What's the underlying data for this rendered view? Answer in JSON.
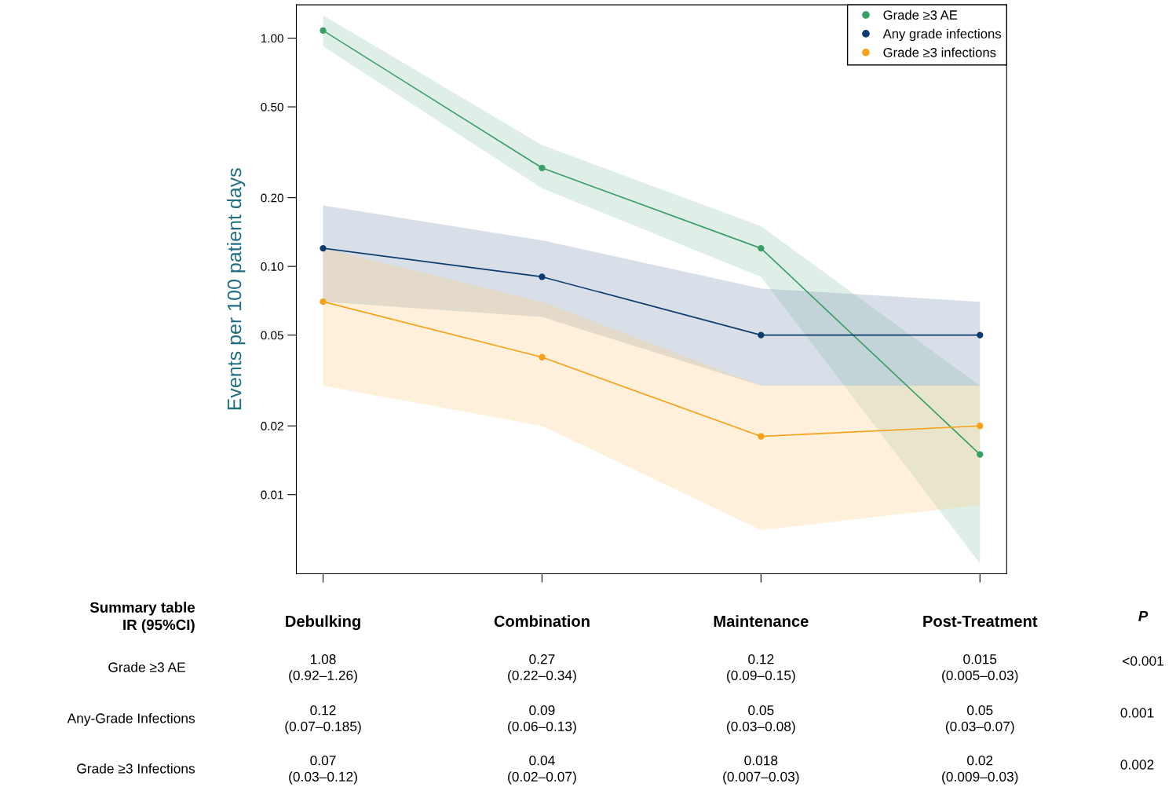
{
  "chart_data": {
    "type": "line",
    "ylabel": "Events per 100 patient days",
    "categories": [
      "Debulking",
      "Combination",
      "Maintenance",
      "Post-Treatment"
    ],
    "log": true,
    "ylim": [
      0.0045,
      1.4
    ],
    "yticks": [
      {
        "value": 0.01,
        "label": "0.01"
      },
      {
        "value": 0.02,
        "label": "0.02"
      },
      {
        "value": 0.05,
        "label": "0.05"
      },
      {
        "value": 0.1,
        "label": "0.10"
      },
      {
        "value": 0.2,
        "label": "0.20"
      },
      {
        "value": 0.5,
        "label": "0.50"
      },
      {
        "value": 1,
        "label": "1.00"
      }
    ],
    "marker": "circle",
    "line_style": "solid",
    "legend": "top right",
    "series": [
      {
        "name": "Grade ≥3 AE",
        "color": "#3a9e68",
        "values": [
          1.08,
          0.27,
          0.12,
          0.015
        ],
        "lower": [
          0.92,
          0.22,
          0.09,
          0.005
        ],
        "upper": [
          1.26,
          0.34,
          0.15,
          0.03
        ],
        "value_labels": [
          "1.08\n(0.92–1.26)",
          "0.27\n(0.22–0.34)",
          "0.12\n(0.09–0.15)",
          "0.015\n(0.005–0.03)"
        ]
      },
      {
        "name": "Any grade infections",
        "color": "#0c3b6f",
        "values": [
          0.12,
          0.09,
          0.05,
          0.05
        ],
        "lower": [
          0.07,
          0.06,
          0.03,
          0.03
        ],
        "upper": [
          0.185,
          0.13,
          0.08,
          0.07
        ],
        "value_labels": [
          "0.12\n(0.07–0.185)",
          "0.09\n(0.06–0.13)",
          "0.05\n(0.03–0.08)",
          "0.05\n(0.03–0.07)"
        ]
      },
      {
        "name": "Grade ≥3 infections",
        "color": "#f7a11a",
        "values": [
          0.07,
          0.04,
          0.018,
          0.02
        ],
        "lower": [
          0.03,
          0.02,
          0.007,
          0.009
        ],
        "upper": [
          0.12,
          0.07,
          0.03,
          0.03
        ],
        "value_labels": [
          "0.07\n(0.03–0.12)",
          "0.04\n(0.02–0.07)",
          "0.018\n(0.007–0.03)",
          "0.02\n(0.009–0.03)"
        ]
      }
    ],
    "annotations": [
      "Summary table\nIR (95%CI)",
      "Grade ≥3 AE",
      "Any-Grade Infections",
      "Grade ≥3 Infections",
      "P",
      "<0.001",
      "0.001",
      "0.002"
    ]
  }
}
